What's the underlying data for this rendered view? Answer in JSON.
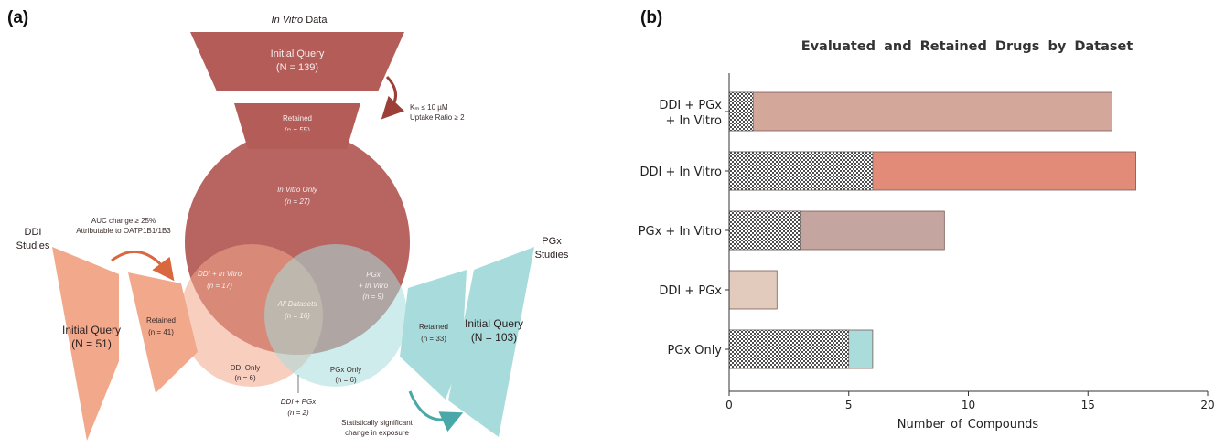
{
  "panel_a": {
    "label": "(a)",
    "top_title_italic": "In Vitro",
    "top_title_rest": " Data",
    "funnel_top": {
      "line1": "Initial Query",
      "line2": "(N = 139)"
    },
    "retained_top": {
      "line1": "Retained",
      "line2": "(n = 55)"
    },
    "criteria_top": {
      "line1": "Kₘ ≤ 10 µM",
      "line2": "Uptake Ratio ≥ 2"
    },
    "invitro_only": {
      "line1": "In Vitro Only",
      "line2": "(n = 27)"
    },
    "ddi_invitro": {
      "line1": "DDI + In Vitro",
      "line2": "(n = 17)"
    },
    "all_datasets": {
      "line1": "All Datasets",
      "line2": "(n = 16)"
    },
    "pgx_invitro": {
      "line1": "PGx",
      "line2": "+ In Vitro",
      "line3": "(n = 9)"
    },
    "ddi_only": {
      "line1": "DDI Only",
      "line2": "(n = 6)"
    },
    "pgx_only": {
      "line1": "PGx Only",
      "line2": "(n = 6)"
    },
    "ddi_pgx": {
      "line1": "DDI + PGx",
      "line2": "(n = 2)"
    },
    "ddi_studies": {
      "line1": "DDI",
      "line2": "Studies"
    },
    "ddi_criteria": {
      "line1": "AUC change ≥ 25%",
      "line2": "Attributable to OATP1B1/1B3"
    },
    "ddi_initial": {
      "line1": "Initial Query",
      "line2": "(N = 51)"
    },
    "ddi_retained": {
      "line1": "Retained",
      "line2": "(n = 41)"
    },
    "pgx_studies": {
      "line1": "PGx",
      "line2": "Studies"
    },
    "pgx_retained": {
      "line1": "Retained",
      "line2": "(n = 33)"
    },
    "pgx_initial": {
      "line1": "Initial Query",
      "line2": "(N = 103)"
    },
    "pgx_criteria": {
      "line1": "Statistically significant",
      "line2": "change in exposure"
    },
    "colors": {
      "invitro": "#b45c57",
      "ddi": "#f2a88a",
      "pgx": "#a8dcdc"
    }
  },
  "chart_data": {
    "panel_label": "(b)",
    "type": "bar",
    "orientation": "horizontal",
    "stacked": true,
    "title": "Evaluated and Retained Drugs by Dataset",
    "xlabel": "Number of Compounds",
    "ylabel": "",
    "xlim": [
      0,
      20
    ],
    "xticks": [
      0,
      5,
      10,
      15,
      20
    ],
    "grid": false,
    "categories": [
      {
        "line1": "DDI + PGx",
        "line2": "+ In Vitro"
      },
      {
        "line1": "DDI + In Vitro",
        "line2": ""
      },
      {
        "line1": "PGx + In Vitro",
        "line2": ""
      },
      {
        "line1": "DDI + PGx",
        "line2": ""
      },
      {
        "line1": "PGx Only",
        "line2": ""
      }
    ],
    "bars": [
      {
        "retained": 1,
        "total": 16,
        "color": "#d4a79b"
      },
      {
        "retained": 6,
        "total": 17,
        "color": "#e28b78"
      },
      {
        "retained": 3,
        "total": 9,
        "color": "#c4a59f"
      },
      {
        "retained": 0,
        "total": 2,
        "color": "#e2cbbc"
      },
      {
        "retained": 5,
        "total": 6,
        "color": "#a9dcda"
      }
    ]
  }
}
